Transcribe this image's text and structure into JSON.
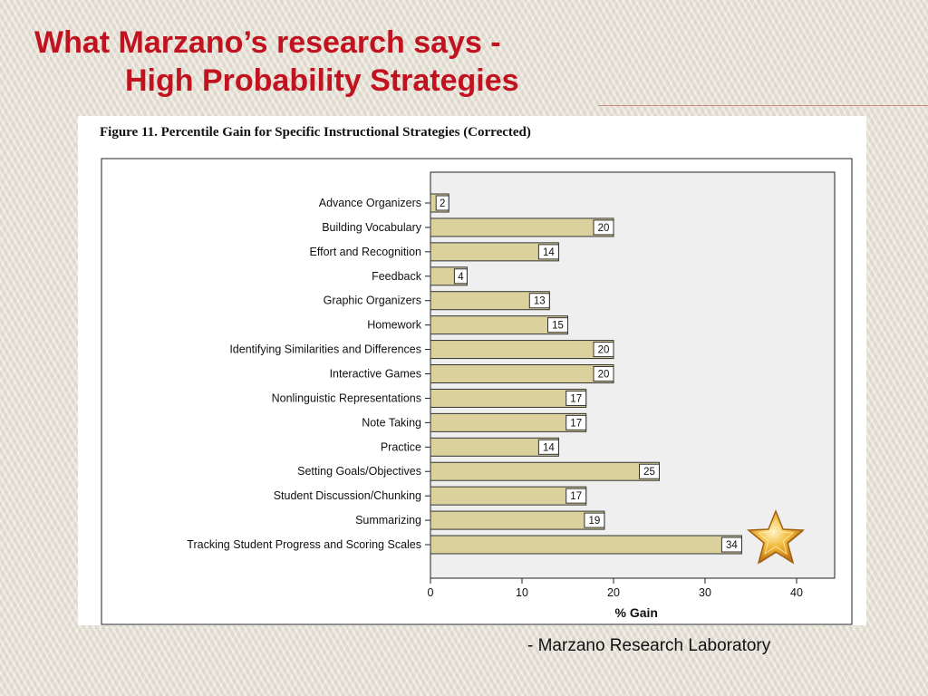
{
  "slide": {
    "title_line1": "What Marzano’s research says -",
    "title_line2": "High Probability Strategies",
    "source": "- Marzano Research Laboratory"
  },
  "colors": {
    "title": "#c1121f",
    "bar_fill": "#dad19c",
    "plot_background": "#efefef"
  },
  "icons": {
    "badge": "gold-star-icon"
  },
  "chart_data": {
    "type": "bar",
    "orientation": "horizontal",
    "title": "Figure 11. Percentile Gain for Specific Instructional Strategies (Corrected)",
    "xlabel": "% Gain",
    "ylabel": "",
    "xlim": [
      0,
      40
    ],
    "xticks": [
      0,
      10,
      20,
      30,
      40
    ],
    "grid": false,
    "categories": [
      "Advance Organizers",
      "Building Vocabulary",
      "Effort and Recognition",
      "Feedback",
      "Graphic Organizers",
      "Homework",
      "Identifying Similarities and Differences",
      "Interactive Games",
      "Nonlinguistic Representations",
      "Note Taking",
      "Practice",
      "Setting Goals/Objectives",
      "Student Discussion/Chunking",
      "Summarizing",
      "Tracking Student Progress and Scoring Scales"
    ],
    "values": [
      2,
      20,
      14,
      4,
      13,
      15,
      20,
      20,
      17,
      17,
      14,
      25,
      17,
      19,
      34
    ],
    "data_labels": [
      "2",
      "20",
      "14",
      "4",
      "13",
      "15",
      "20",
      "20",
      "17",
      "17",
      "14",
      "25",
      "17",
      "19",
      "34"
    ]
  }
}
